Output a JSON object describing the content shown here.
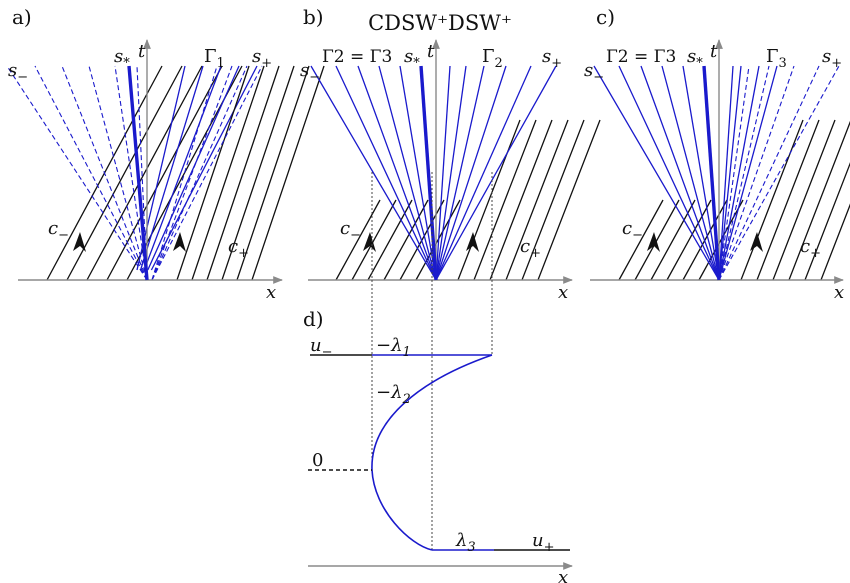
{
  "title": "CDSW⁺DSW⁺",
  "colors": {
    "characteristic": "#111111",
    "wave": "#1a1acc",
    "axis": "#8a8a8a",
    "guide": "#444444"
  },
  "panels": [
    {
      "letter": "a)",
      "axis_t": "t",
      "axis_x": "x",
      "s_minus": "s−",
      "s_star": "s*",
      "s_plus": "s+",
      "gamma_left": "",
      "gamma_right": "Γ1",
      "c_minus": "c−",
      "c_plus": "c+"
    },
    {
      "letter": "b)",
      "axis_t": "t",
      "axis_x": "x",
      "s_minus": "s−",
      "s_star": "s*",
      "s_plus": "s+",
      "gamma_left": "Γ2 = Γ3",
      "gamma_right": "Γ2",
      "c_minus": "c−",
      "c_plus": "c+"
    },
    {
      "letter": "c)",
      "axis_t": "t",
      "axis_x": "x",
      "s_minus": "s−",
      "s_star": "s*",
      "s_plus": "s+",
      "gamma_left": "Γ2 = Γ3",
      "gamma_right": "Γ3",
      "c_minus": "c−",
      "c_plus": "c+"
    }
  ],
  "profile": {
    "letter": "d)",
    "u_minus": "u−",
    "u_plus": "u+",
    "lambda1": "−λ1",
    "lambda2": "−λ2",
    "lambda3": "λ3",
    "zero": "0",
    "axis_x": "x"
  }
}
